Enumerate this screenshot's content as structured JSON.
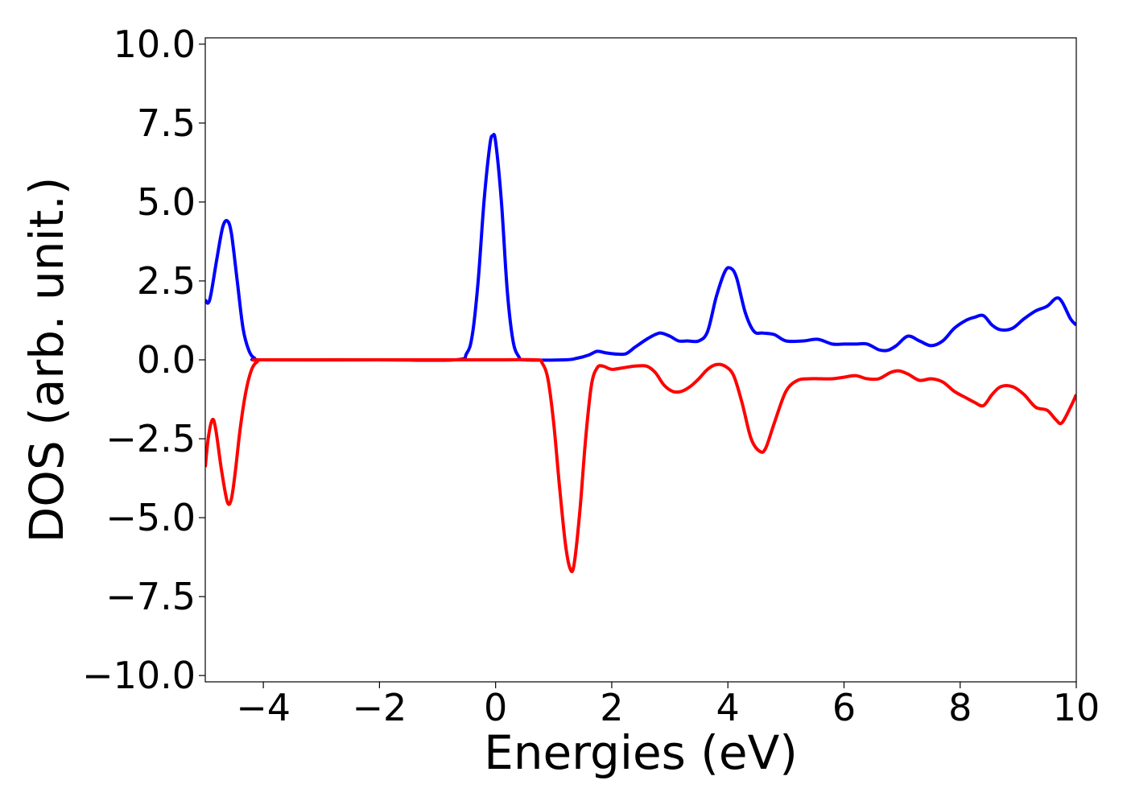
{
  "chart_data": {
    "type": "line",
    "title": "",
    "xlabel": "Energies (eV)",
    "ylabel": "DOS (arb. unit.)",
    "xlim": [
      -5,
      10
    ],
    "ylim": [
      -10.2,
      10.2
    ],
    "xticks": [
      -4,
      -2,
      0,
      2,
      4,
      6,
      8,
      10
    ],
    "xtick_labels": [
      "−4",
      "−2",
      "0",
      "2",
      "4",
      "6",
      "8",
      "10"
    ],
    "yticks": [
      10,
      7.5,
      5,
      2.5,
      0,
      -2.5,
      -5,
      -7.5,
      -10
    ],
    "ytick_labels": [
      "10.0",
      "7.5",
      "5.0",
      "2.5",
      "0.0",
      "−2.5",
      "−5.0",
      "−7.5",
      "−10.0"
    ],
    "grid": false,
    "legend": "none",
    "series": [
      {
        "color": "#0000ff",
        "points": [
          [
            -5.0,
            1.9
          ],
          [
            -4.95,
            1.8
          ],
          [
            -4.9,
            2.1
          ],
          [
            -4.8,
            3.2
          ],
          [
            -4.7,
            4.2
          ],
          [
            -4.62,
            4.4
          ],
          [
            -4.55,
            4.0
          ],
          [
            -4.45,
            2.5
          ],
          [
            -4.35,
            1.0
          ],
          [
            -4.25,
            0.3
          ],
          [
            -4.15,
            0.05
          ],
          [
            -4.0,
            0.0
          ],
          [
            -2.0,
            0.0
          ],
          [
            -0.7,
            0.0
          ],
          [
            -0.5,
            0.2
          ],
          [
            -0.4,
            0.8
          ],
          [
            -0.3,
            2.5
          ],
          [
            -0.2,
            5.0
          ],
          [
            -0.1,
            6.8
          ],
          [
            -0.05,
            7.1
          ],
          [
            0.0,
            6.9
          ],
          [
            0.1,
            5.0
          ],
          [
            0.2,
            2.2
          ],
          [
            0.3,
            0.6
          ],
          [
            0.4,
            0.1
          ],
          [
            0.5,
            0.0
          ],
          [
            1.2,
            0.0
          ],
          [
            1.4,
            0.05
          ],
          [
            1.6,
            0.15
          ],
          [
            1.75,
            0.27
          ],
          [
            1.9,
            0.22
          ],
          [
            2.1,
            0.18
          ],
          [
            2.25,
            0.2
          ],
          [
            2.4,
            0.4
          ],
          [
            2.6,
            0.65
          ],
          [
            2.75,
            0.8
          ],
          [
            2.85,
            0.85
          ],
          [
            3.0,
            0.75
          ],
          [
            3.15,
            0.6
          ],
          [
            3.3,
            0.6
          ],
          [
            3.5,
            0.6
          ],
          [
            3.65,
            0.9
          ],
          [
            3.8,
            2.0
          ],
          [
            3.95,
            2.8
          ],
          [
            4.05,
            2.9
          ],
          [
            4.15,
            2.6
          ],
          [
            4.3,
            1.5
          ],
          [
            4.45,
            0.9
          ],
          [
            4.6,
            0.85
          ],
          [
            4.8,
            0.8
          ],
          [
            5.0,
            0.6
          ],
          [
            5.3,
            0.6
          ],
          [
            5.55,
            0.65
          ],
          [
            5.8,
            0.5
          ],
          [
            6.0,
            0.5
          ],
          [
            6.2,
            0.5
          ],
          [
            6.4,
            0.5
          ],
          [
            6.6,
            0.32
          ],
          [
            6.75,
            0.3
          ],
          [
            6.9,
            0.45
          ],
          [
            7.1,
            0.75
          ],
          [
            7.3,
            0.6
          ],
          [
            7.5,
            0.45
          ],
          [
            7.7,
            0.6
          ],
          [
            7.9,
            1.0
          ],
          [
            8.1,
            1.25
          ],
          [
            8.25,
            1.35
          ],
          [
            8.4,
            1.4
          ],
          [
            8.55,
            1.1
          ],
          [
            8.7,
            0.95
          ],
          [
            8.9,
            1.0
          ],
          [
            9.1,
            1.3
          ],
          [
            9.3,
            1.55
          ],
          [
            9.5,
            1.7
          ],
          [
            9.65,
            1.95
          ],
          [
            9.75,
            1.85
          ],
          [
            9.9,
            1.3
          ],
          [
            10.0,
            1.1
          ]
        ]
      },
      {
        "color": "#ff0000",
        "points": [
          [
            -5.0,
            -3.4
          ],
          [
            -4.95,
            -2.5
          ],
          [
            -4.88,
            -1.9
          ],
          [
            -4.82,
            -2.2
          ],
          [
            -4.72,
            -3.5
          ],
          [
            -4.62,
            -4.5
          ],
          [
            -4.55,
            -4.4
          ],
          [
            -4.48,
            -3.5
          ],
          [
            -4.4,
            -2.2
          ],
          [
            -4.3,
            -1.0
          ],
          [
            -4.2,
            -0.3
          ],
          [
            -4.1,
            -0.05
          ],
          [
            -4.0,
            0.0
          ],
          [
            -2.0,
            0.0
          ],
          [
            0.0,
            0.0
          ],
          [
            0.7,
            0.0
          ],
          [
            0.8,
            -0.1
          ],
          [
            0.9,
            -0.6
          ],
          [
            1.0,
            -2.0
          ],
          [
            1.1,
            -4.0
          ],
          [
            1.2,
            -5.8
          ],
          [
            1.28,
            -6.6
          ],
          [
            1.35,
            -6.5
          ],
          [
            1.45,
            -4.8
          ],
          [
            1.55,
            -2.5
          ],
          [
            1.65,
            -0.8
          ],
          [
            1.75,
            -0.25
          ],
          [
            1.85,
            -0.2
          ],
          [
            2.0,
            -0.3
          ],
          [
            2.2,
            -0.25
          ],
          [
            2.4,
            -0.2
          ],
          [
            2.6,
            -0.2
          ],
          [
            2.75,
            -0.4
          ],
          [
            2.9,
            -0.8
          ],
          [
            3.05,
            -1.0
          ],
          [
            3.2,
            -1.0
          ],
          [
            3.35,
            -0.85
          ],
          [
            3.5,
            -0.6
          ],
          [
            3.65,
            -0.3
          ],
          [
            3.8,
            -0.15
          ],
          [
            3.95,
            -0.2
          ],
          [
            4.1,
            -0.5
          ],
          [
            4.25,
            -1.4
          ],
          [
            4.4,
            -2.5
          ],
          [
            4.55,
            -2.9
          ],
          [
            4.65,
            -2.8
          ],
          [
            4.8,
            -2.0
          ],
          [
            5.0,
            -1.0
          ],
          [
            5.2,
            -0.65
          ],
          [
            5.4,
            -0.6
          ],
          [
            5.6,
            -0.6
          ],
          [
            5.8,
            -0.6
          ],
          [
            6.0,
            -0.55
          ],
          [
            6.2,
            -0.5
          ],
          [
            6.4,
            -0.6
          ],
          [
            6.6,
            -0.6
          ],
          [
            6.8,
            -0.4
          ],
          [
            6.95,
            -0.35
          ],
          [
            7.1,
            -0.45
          ],
          [
            7.3,
            -0.65
          ],
          [
            7.5,
            -0.6
          ],
          [
            7.7,
            -0.7
          ],
          [
            7.9,
            -1.0
          ],
          [
            8.1,
            -1.2
          ],
          [
            8.25,
            -1.35
          ],
          [
            8.4,
            -1.45
          ],
          [
            8.55,
            -1.1
          ],
          [
            8.7,
            -0.85
          ],
          [
            8.9,
            -0.85
          ],
          [
            9.1,
            -1.1
          ],
          [
            9.3,
            -1.5
          ],
          [
            9.5,
            -1.6
          ],
          [
            9.65,
            -1.9
          ],
          [
            9.75,
            -2.0
          ],
          [
            9.9,
            -1.5
          ],
          [
            10.0,
            -1.1
          ]
        ]
      }
    ]
  }
}
